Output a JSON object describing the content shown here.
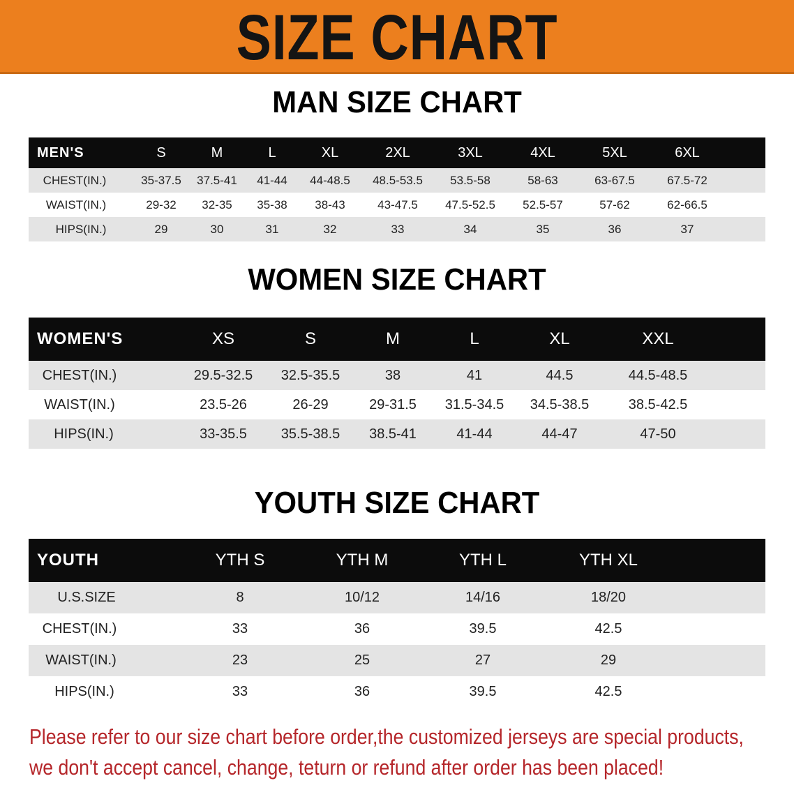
{
  "banner": {
    "title": "SIZE CHART",
    "color": "#ec7f1e"
  },
  "men": {
    "title": "MAN SIZE CHART",
    "header": [
      "MEN'S",
      "S",
      "M",
      "L",
      "XL",
      "2XL",
      "3XL",
      "4XL",
      "5XL",
      "6XL"
    ],
    "rows": [
      [
        "CHEST(IN.)",
        "35-37.5",
        "37.5-41",
        "41-44",
        "44-48.5",
        "48.5-53.5",
        "53.5-58",
        "58-63",
        "63-67.5",
        "67.5-72"
      ],
      [
        "WAIST(IN.)",
        "29-32",
        "32-35",
        "35-38",
        "38-43",
        "43-47.5",
        "47.5-52.5",
        "52.5-57",
        "57-62",
        "62-66.5"
      ],
      [
        "HIPS(IN.)",
        "29",
        "30",
        "31",
        "32",
        "33",
        "34",
        "35",
        "36",
        "37"
      ]
    ]
  },
  "women": {
    "title": "WOMEN SIZE CHART",
    "header": [
      "WOMEN'S",
      "XS",
      "S",
      "M",
      "L",
      "XL",
      "XXL"
    ],
    "rows": [
      [
        "CHEST(IN.)",
        "29.5-32.5",
        "32.5-35.5",
        "38",
        "41",
        "44.5",
        "44.5-48.5"
      ],
      [
        "WAIST(IN.)",
        "23.5-26",
        "26-29",
        "29-31.5",
        "31.5-34.5",
        "34.5-38.5",
        "38.5-42.5"
      ],
      [
        "HIPS(IN.)",
        "33-35.5",
        "35.5-38.5",
        "38.5-41",
        "41-44",
        "44-47",
        "47-50"
      ]
    ]
  },
  "youth": {
    "title": "YOUTH SIZE CHART",
    "header": [
      "YOUTH",
      "YTH S",
      "YTH M",
      "YTH L",
      "YTH XL"
    ],
    "rows": [
      [
        "U.S.SIZE",
        "8",
        "10/12",
        "14/16",
        "18/20"
      ],
      [
        "CHEST(IN.)",
        "33",
        "36",
        "39.5",
        "42.5"
      ],
      [
        "WAIST(IN.)",
        "23",
        "25",
        "27",
        "29"
      ],
      [
        "HIPS(IN.)",
        "33",
        "36",
        "39.5",
        "42.5"
      ]
    ]
  },
  "notice": {
    "line1": "Please refer to our size chart before order,the customized jerseys are special products,",
    "line2": "we don't accept cancel, change, teturn or refund after order has been placed!",
    "color": "#b5262a"
  }
}
